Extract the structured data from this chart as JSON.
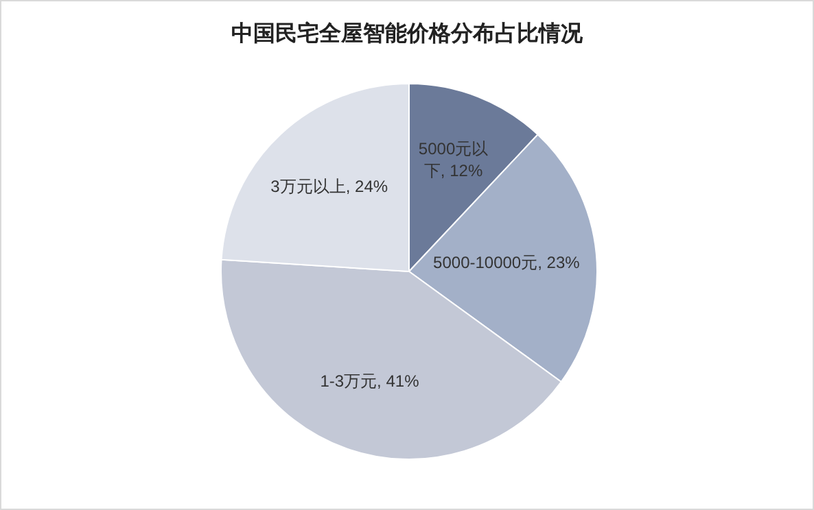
{
  "chart_data": {
    "type": "pie",
    "title": "中国民宅全屋智能价格分布占比情况",
    "categories": [
      "5000元以下",
      "5000-10000元",
      "1-3万元",
      "3万元以上"
    ],
    "values": [
      12,
      23,
      41,
      24
    ],
    "value_labels": [
      "12%",
      "23%",
      "41%",
      "24%"
    ],
    "colors": [
      "#6b7a99",
      "#a3b0c8",
      "#c3c8d6",
      "#dde1ea"
    ],
    "legend": false
  }
}
